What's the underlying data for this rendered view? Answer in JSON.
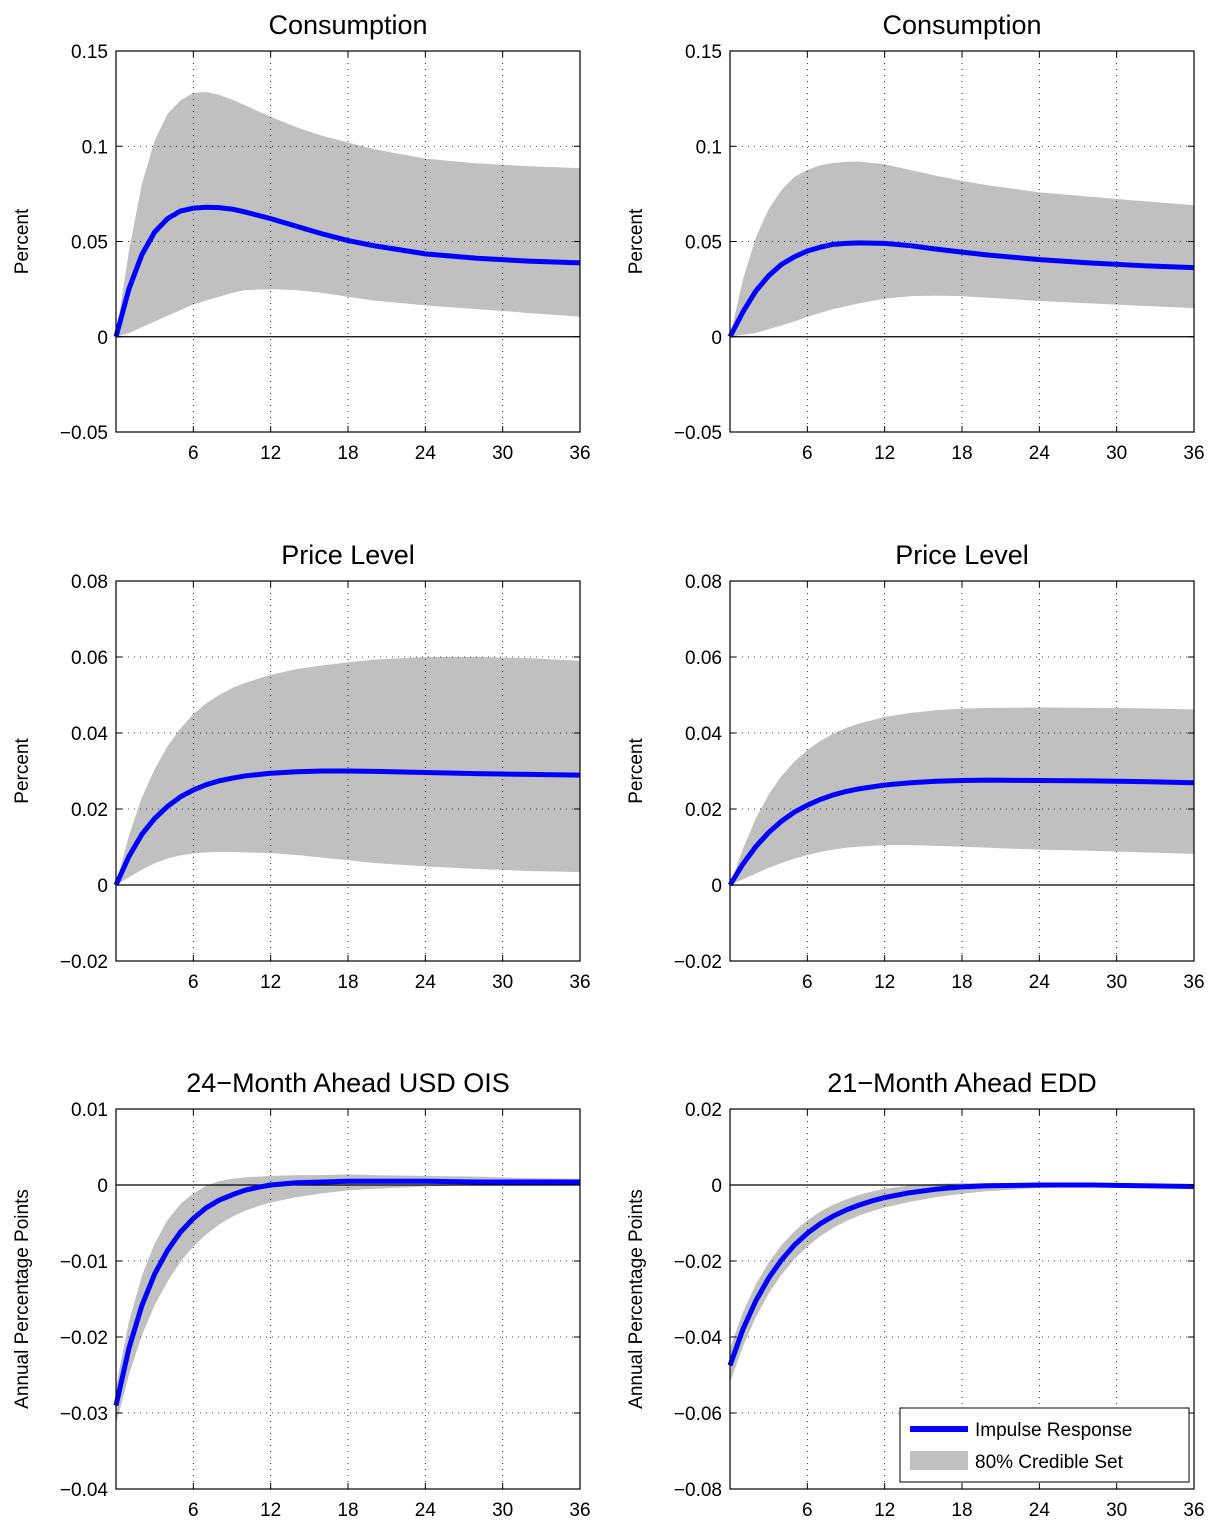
{
  "figure": {
    "legend": {
      "placement": "bottom-right of last panel",
      "entries": [
        "Impulse Response",
        "80% Credible Set"
      ]
    },
    "colors": {
      "line": "#0000ff",
      "band": "#c0c0c0",
      "zero_line": "#000000",
      "grid": "#000000"
    }
  },
  "chart_data": [
    {
      "type": "area",
      "title": "Consumption",
      "ylabel": "Percent",
      "xlim": [
        0,
        36
      ],
      "ylim": [
        -0.05,
        0.15
      ],
      "xticks": [
        6,
        12,
        18,
        24,
        30,
        36
      ],
      "yticks": [
        -0.05,
        0,
        0.05,
        0.1,
        0.15
      ],
      "ytick_labels": [
        "−0.05",
        "0",
        "0.05",
        "0.1",
        "0.15"
      ],
      "grid": true,
      "x": [
        0,
        1,
        2,
        3,
        4,
        5,
        6,
        7,
        8,
        9,
        10,
        12,
        14,
        16,
        18,
        20,
        24,
        28,
        32,
        36
      ],
      "series": [
        {
          "name": "Impulse Response",
          "values": [
            0,
            0.025,
            0.043,
            0.055,
            0.062,
            0.066,
            0.0675,
            0.068,
            0.0678,
            0.067,
            0.0655,
            0.062,
            0.058,
            0.054,
            0.0505,
            0.0478,
            0.0435,
            0.0412,
            0.0397,
            0.0388
          ]
        },
        {
          "name": "80% Credible Set",
          "lower": [
            0,
            0.002,
            0.005,
            0.008,
            0.011,
            0.014,
            0.017,
            0.019,
            0.021,
            0.023,
            0.0245,
            0.025,
            0.0245,
            0.023,
            0.021,
            0.019,
            0.0165,
            0.0145,
            0.0125,
            0.0105
          ],
          "upper": [
            0,
            0.045,
            0.08,
            0.103,
            0.117,
            0.124,
            0.128,
            0.1285,
            0.127,
            0.1245,
            0.1215,
            0.1155,
            0.11,
            0.1055,
            0.102,
            0.0985,
            0.0935,
            0.091,
            0.0895,
            0.0885
          ]
        }
      ]
    },
    {
      "type": "area",
      "title": "Consumption",
      "ylabel": "Percent",
      "xlim": [
        0,
        36
      ],
      "ylim": [
        -0.05,
        0.15
      ],
      "xticks": [
        6,
        12,
        18,
        24,
        30,
        36
      ],
      "yticks": [
        -0.05,
        0,
        0.05,
        0.1,
        0.15
      ],
      "ytick_labels": [
        "−0.05",
        "0",
        "0.05",
        "0.1",
        "0.15"
      ],
      "grid": true,
      "x": [
        0,
        1,
        2,
        3,
        4,
        5,
        6,
        7,
        8,
        9,
        10,
        12,
        14,
        16,
        18,
        20,
        24,
        28,
        32,
        36
      ],
      "series": [
        {
          "name": "Impulse Response",
          "values": [
            0,
            0.013,
            0.024,
            0.032,
            0.038,
            0.042,
            0.045,
            0.047,
            0.0485,
            0.049,
            0.0493,
            0.049,
            0.0478,
            0.046,
            0.0444,
            0.0429,
            0.0405,
            0.0387,
            0.0373,
            0.0363
          ]
        },
        {
          "name": "80% Credible Set",
          "lower": [
            0,
            0.001,
            0.002,
            0.004,
            0.006,
            0.008,
            0.0105,
            0.0125,
            0.0145,
            0.016,
            0.0175,
            0.02,
            0.0213,
            0.0215,
            0.0213,
            0.0205,
            0.0188,
            0.0175,
            0.0162,
            0.015
          ],
          "upper": [
            0,
            0.03,
            0.052,
            0.067,
            0.077,
            0.084,
            0.0875,
            0.09,
            0.0912,
            0.0918,
            0.092,
            0.0905,
            0.0875,
            0.0845,
            0.0818,
            0.0795,
            0.0758,
            0.0735,
            0.0712,
            0.069
          ]
        }
      ]
    },
    {
      "type": "area",
      "title": "Price Level",
      "ylabel": "Percent",
      "xlim": [
        0,
        36
      ],
      "ylim": [
        -0.02,
        0.08
      ],
      "xticks": [
        6,
        12,
        18,
        24,
        30,
        36
      ],
      "yticks": [
        -0.02,
        0,
        0.02,
        0.04,
        0.06,
        0.08
      ],
      "ytick_labels": [
        "−0.02",
        "0",
        "0.02",
        "0.04",
        "0.06",
        "0.08"
      ],
      "grid": true,
      "x": [
        0,
        1,
        2,
        3,
        4,
        5,
        6,
        7,
        8,
        9,
        10,
        12,
        14,
        16,
        18,
        20,
        24,
        28,
        32,
        36
      ],
      "series": [
        {
          "name": "Impulse Response",
          "values": [
            0,
            0.0075,
            0.0133,
            0.0175,
            0.0207,
            0.0232,
            0.025,
            0.0264,
            0.0274,
            0.0281,
            0.0287,
            0.0294,
            0.0298,
            0.03,
            0.03,
            0.0299,
            0.0296,
            0.0293,
            0.0291,
            0.0289
          ]
        },
        {
          "name": "80% Credible Set",
          "lower": [
            0,
            0.002,
            0.004,
            0.0057,
            0.007,
            0.0078,
            0.0083,
            0.0086,
            0.0087,
            0.0087,
            0.0086,
            0.0084,
            0.0079,
            0.0072,
            0.0065,
            0.0058,
            0.0049,
            0.0042,
            0.0037,
            0.0034
          ],
          "upper": [
            0,
            0.013,
            0.023,
            0.0305,
            0.0365,
            0.0412,
            0.045,
            0.0478,
            0.05,
            0.0518,
            0.0532,
            0.0553,
            0.0568,
            0.0578,
            0.0586,
            0.0593,
            0.06,
            0.06,
            0.0597,
            0.059
          ]
        }
      ]
    },
    {
      "type": "area",
      "title": "Price Level",
      "ylabel": "Percent",
      "xlim": [
        0,
        36
      ],
      "ylim": [
        -0.02,
        0.08
      ],
      "xticks": [
        6,
        12,
        18,
        24,
        30,
        36
      ],
      "yticks": [
        -0.02,
        0,
        0.02,
        0.04,
        0.06,
        0.08
      ],
      "ytick_labels": [
        "−0.02",
        "0",
        "0.02",
        "0.04",
        "0.06",
        "0.08"
      ],
      "grid": true,
      "x": [
        0,
        1,
        2,
        3,
        4,
        5,
        6,
        7,
        8,
        9,
        10,
        12,
        14,
        16,
        18,
        20,
        24,
        28,
        32,
        36
      ],
      "series": [
        {
          "name": "Impulse Response",
          "values": [
            0,
            0.0055,
            0.0101,
            0.0138,
            0.0168,
            0.0192,
            0.021,
            0.0225,
            0.0237,
            0.0246,
            0.0253,
            0.0263,
            0.0269,
            0.0273,
            0.0275,
            0.0276,
            0.0275,
            0.0274,
            0.0272,
            0.0269
          ]
        },
        {
          "name": "80% Credible Set",
          "lower": [
            0,
            0.0015,
            0.003,
            0.0045,
            0.0058,
            0.0069,
            0.0079,
            0.0087,
            0.0093,
            0.0098,
            0.0101,
            0.0105,
            0.0105,
            0.0103,
            0.0101,
            0.0098,
            0.0093,
            0.009,
            0.0086,
            0.0082
          ],
          "upper": [
            0,
            0.0095,
            0.0175,
            0.0238,
            0.0287,
            0.0325,
            0.0355,
            0.0379,
            0.0398,
            0.0413,
            0.0425,
            0.0442,
            0.0453,
            0.046,
            0.0464,
            0.0466,
            0.0467,
            0.0466,
            0.0465,
            0.0462
          ]
        }
      ]
    },
    {
      "type": "area",
      "title": "24−Month Ahead USD OIS",
      "ylabel": "Annual Percentage Points",
      "xlim": [
        0,
        36
      ],
      "ylim": [
        -0.04,
        0.01
      ],
      "xticks": [
        6,
        12,
        18,
        24,
        30,
        36
      ],
      "yticks": [
        -0.04,
        -0.03,
        -0.02,
        -0.01,
        0,
        0.01
      ],
      "ytick_labels": [
        "−0.04",
        "−0.03",
        "−0.02",
        "−0.01",
        "0",
        "0.01"
      ],
      "grid": true,
      "x": [
        0,
        1,
        2,
        3,
        4,
        5,
        6,
        7,
        8,
        9,
        10,
        11,
        12,
        14,
        16,
        18,
        20,
        24,
        28,
        32,
        36
      ],
      "series": [
        {
          "name": "Impulse Response",
          "values": [
            -0.029,
            -0.0215,
            -0.0159,
            -0.0117,
            -0.0086,
            -0.0062,
            -0.0044,
            -0.003,
            -0.002,
            -0.0013,
            -0.0007,
            -0.0003,
            0,
            0.0003,
            0.0004,
            0.0005,
            0.0005,
            0.0005,
            0.0004,
            0.0004,
            0.0004
          ]
        },
        {
          "name": "80% Credible Set",
          "lower": [
            -0.0315,
            -0.025,
            -0.0198,
            -0.0158,
            -0.0127,
            -0.0101,
            -0.0081,
            -0.0065,
            -0.0052,
            -0.0042,
            -0.0034,
            -0.0028,
            -0.0023,
            -0.0016,
            -0.0011,
            -0.0007,
            -0.0005,
            -0.0002,
            0,
            0.0001,
            0.0001
          ],
          "upper": [
            -0.0265,
            -0.018,
            -0.012,
            -0.0077,
            -0.0046,
            -0.0025,
            -0.0011,
            -0.0001,
            0.0005,
            0.0008,
            0.001,
            0.0011,
            0.0012,
            0.0013,
            0.0013,
            0.0014,
            0.0013,
            0.0012,
            0.0011,
            0.0009,
            0.0008
          ]
        }
      ]
    },
    {
      "type": "area",
      "title": "21−Month Ahead EDD",
      "ylabel": "Annual Percentage Points",
      "xlim": [
        0,
        36
      ],
      "ylim": [
        -0.08,
        0.02
      ],
      "xticks": [
        6,
        12,
        18,
        24,
        30,
        36
      ],
      "yticks": [
        -0.08,
        -0.06,
        -0.04,
        -0.02,
        0,
        0.02
      ],
      "ytick_labels": [
        "−0.08",
        "−0.06",
        "−0.04",
        "−0.02",
        "0",
        "0.02"
      ],
      "grid": true,
      "x": [
        0,
        1,
        2,
        3,
        4,
        5,
        6,
        7,
        8,
        9,
        10,
        11,
        12,
        14,
        16,
        18,
        20,
        24,
        28,
        32,
        36
      ],
      "series": [
        {
          "name": "Impulse Response",
          "values": [
            -0.0475,
            -0.038,
            -0.0305,
            -0.0245,
            -0.0197,
            -0.0158,
            -0.0127,
            -0.0102,
            -0.0082,
            -0.0066,
            -0.0053,
            -0.0042,
            -0.0033,
            -0.002,
            -0.0011,
            -0.0005,
            -0.0002,
            0,
            0,
            -0.0002,
            -0.0004
          ]
        },
        {
          "name": "80% Credible Set",
          "lower": [
            -0.052,
            -0.0425,
            -0.0348,
            -0.0286,
            -0.0236,
            -0.0195,
            -0.0162,
            -0.0135,
            -0.0113,
            -0.0095,
            -0.0081,
            -0.0069,
            -0.0059,
            -0.0044,
            -0.0032,
            -0.0023,
            -0.0016,
            -0.0008,
            -0.0005,
            -0.0006,
            -0.0008
          ],
          "upper": [
            -0.043,
            -0.0335,
            -0.0262,
            -0.0204,
            -0.0158,
            -0.0122,
            -0.0093,
            -0.007,
            -0.0052,
            -0.0038,
            -0.0026,
            -0.0017,
            -0.001,
            -0.0001,
            0.0003,
            0.0005,
            0.0005,
            0.0005,
            0.0004,
            0.0002,
            0
          ]
        }
      ]
    }
  ]
}
